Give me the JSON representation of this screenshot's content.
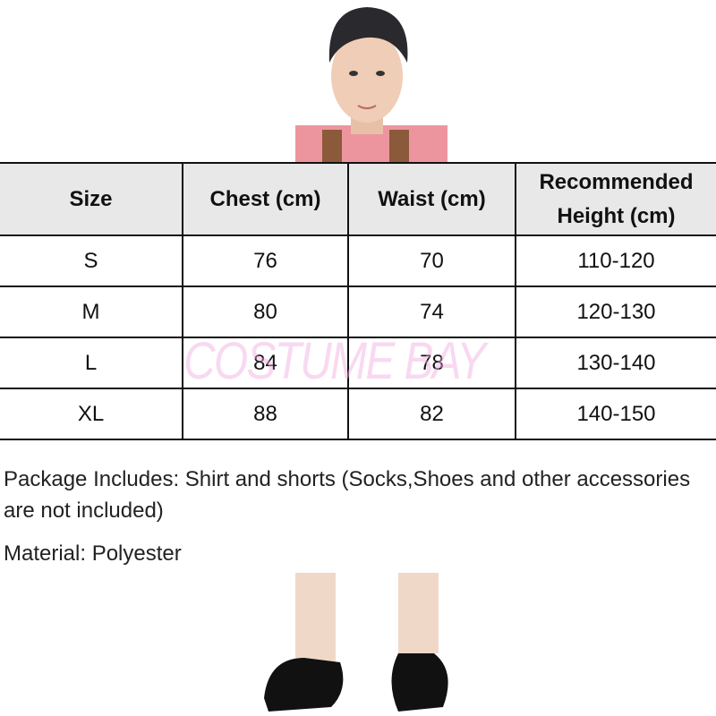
{
  "table": {
    "headers": [
      "Size",
      "Chest (cm)",
      "Waist (cm)",
      "Recommended Height (cm)"
    ],
    "rows": [
      [
        "S",
        "76",
        "70",
        "110-120"
      ],
      [
        "M",
        "80",
        "74",
        "120-130"
      ],
      [
        "L",
        "84",
        "78",
        "130-140"
      ],
      [
        "XL",
        "88",
        "82",
        "140-150"
      ]
    ]
  },
  "watermark": "COSTUME BAY",
  "package_text": "Package Includes: Shirt and shorts (Socks,Shoes and other accessories are not included)",
  "material_text": "Material: Polyester",
  "colors": {
    "header_bg": "#e8e8e8",
    "shirt": "#e87a86",
    "watermark": "#f0aae1"
  }
}
